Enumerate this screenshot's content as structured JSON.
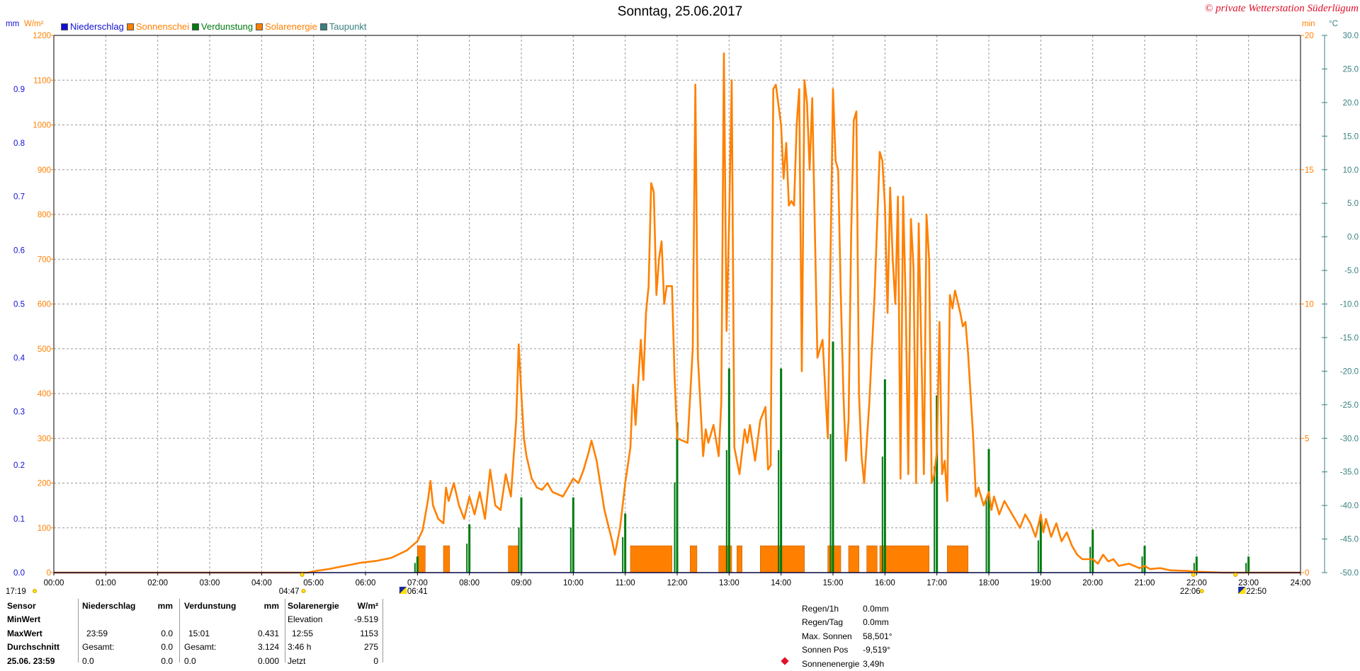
{
  "header": {
    "title": "Sonntag, 25.06.2017",
    "copyright": "© private Wetterstation Süderlügum"
  },
  "legend": [
    {
      "label": "Niederschlag",
      "color": "#1010d0"
    },
    {
      "label": "Sonnenschei",
      "color": "#ff8000"
    },
    {
      "label": "Verdunstung",
      "color": "#007a10"
    },
    {
      "label": "Solarenergie",
      "color": "#ff8000"
    },
    {
      "label": "Taupunkt",
      "color": "#3a8080"
    }
  ],
  "units": {
    "left_mm": "mm",
    "left_wm2": "W/m²",
    "right_min": "min",
    "right_c": "°C"
  },
  "chart_data": {
    "type": "line",
    "title": "Sonntag, 25.06.2017",
    "x_ticks": [
      "00:00",
      "01:00",
      "02:00",
      "03:00",
      "04:00",
      "05:00",
      "06:00",
      "07:00",
      "08:00",
      "09:00",
      "10:00",
      "11:00",
      "12:00",
      "13:00",
      "14:00",
      "15:00",
      "16:00",
      "17:00",
      "18:00",
      "19:00",
      "20:00",
      "21:00",
      "22:00",
      "23:00",
      "24:00"
    ],
    "xlim": [
      0,
      24
    ],
    "axes": {
      "mm": {
        "ticks": [
          "0.0",
          "0.1",
          "0.2",
          "0.3",
          "0.4",
          "0.5",
          "0.6",
          "0.7",
          "0.8",
          "0.9"
        ],
        "color": "#1010d0",
        "ylim": [
          0,
          1.0
        ]
      },
      "wm2": {
        "ticks": [
          "0",
          "100",
          "200",
          "300",
          "400",
          "500",
          "600",
          "700",
          "800",
          "900",
          "1000",
          "1100",
          "1200"
        ],
        "color": "#ff8000",
        "ylim": [
          0,
          1200
        ]
      },
      "min": {
        "ticks": [
          "0",
          "5",
          "10",
          "15",
          "20"
        ],
        "color": "#ff8000",
        "ylim": [
          0,
          20
        ]
      },
      "celsius": {
        "ticks": [
          "-50.0",
          "-45.0",
          "-40.0",
          "-35.0",
          "-30.0",
          "-25.0",
          "-20.0",
          "-15.0",
          "-10.0",
          "-5.0",
          "0.0",
          "5.0",
          "10.0",
          "15.0",
          "20.0",
          "25.0",
          "30.0"
        ],
        "color": "#3a8080",
        "ylim": [
          -50,
          30
        ]
      }
    },
    "grid": true,
    "series": [
      {
        "name": "Solarenergie",
        "unit": "W/m²",
        "color": "#ff8000",
        "kind": "line",
        "points": [
          [
            0,
            0
          ],
          [
            4.9,
            0
          ],
          [
            5.0,
            3
          ],
          [
            5.3,
            8
          ],
          [
            5.6,
            15
          ],
          [
            5.9,
            22
          ],
          [
            6.2,
            26
          ],
          [
            6.5,
            33
          ],
          [
            6.8,
            50
          ],
          [
            7.0,
            70
          ],
          [
            7.1,
            95
          ],
          [
            7.2,
            160
          ],
          [
            7.25,
            205
          ],
          [
            7.3,
            150
          ],
          [
            7.4,
            120
          ],
          [
            7.5,
            110
          ],
          [
            7.55,
            190
          ],
          [
            7.6,
            160
          ],
          [
            7.7,
            200
          ],
          [
            7.8,
            150
          ],
          [
            7.9,
            120
          ],
          [
            8.0,
            170
          ],
          [
            8.1,
            130
          ],
          [
            8.2,
            180
          ],
          [
            8.3,
            120
          ],
          [
            8.4,
            230
          ],
          [
            8.5,
            150
          ],
          [
            8.6,
            140
          ],
          [
            8.7,
            220
          ],
          [
            8.8,
            170
          ],
          [
            8.9,
            340
          ],
          [
            8.95,
            510
          ],
          [
            9.0,
            400
          ],
          [
            9.05,
            300
          ],
          [
            9.1,
            260
          ],
          [
            9.2,
            210
          ],
          [
            9.3,
            190
          ],
          [
            9.4,
            185
          ],
          [
            9.5,
            200
          ],
          [
            9.6,
            180
          ],
          [
            9.8,
            170
          ],
          [
            9.9,
            190
          ],
          [
            10.0,
            210
          ],
          [
            10.1,
            200
          ],
          [
            10.2,
            230
          ],
          [
            10.3,
            270
          ],
          [
            10.35,
            295
          ],
          [
            10.45,
            250
          ],
          [
            10.6,
            140
          ],
          [
            10.75,
            70
          ],
          [
            10.8,
            40
          ],
          [
            10.9,
            100
          ],
          [
            11.0,
            200
          ],
          [
            11.1,
            280
          ],
          [
            11.15,
            420
          ],
          [
            11.2,
            330
          ],
          [
            11.3,
            520
          ],
          [
            11.35,
            430
          ],
          [
            11.4,
            580
          ],
          [
            11.45,
            640
          ],
          [
            11.5,
            870
          ],
          [
            11.55,
            850
          ],
          [
            11.6,
            620
          ],
          [
            11.65,
            700
          ],
          [
            11.7,
            740
          ],
          [
            11.75,
            600
          ],
          [
            11.8,
            640
          ],
          [
            11.9,
            640
          ],
          [
            11.95,
            440
          ],
          [
            12.0,
            300
          ],
          [
            12.2,
            290
          ],
          [
            12.3,
            500
          ],
          [
            12.35,
            1090
          ],
          [
            12.4,
            480
          ],
          [
            12.5,
            260
          ],
          [
            12.55,
            320
          ],
          [
            12.6,
            290
          ],
          [
            12.7,
            330
          ],
          [
            12.8,
            260
          ],
          [
            12.85,
            380
          ],
          [
            12.9,
            1160
          ],
          [
            12.95,
            540
          ],
          [
            13.0,
            780
          ],
          [
            13.05,
            1100
          ],
          [
            13.1,
            280
          ],
          [
            13.2,
            220
          ],
          [
            13.3,
            320
          ],
          [
            13.35,
            290
          ],
          [
            13.4,
            330
          ],
          [
            13.5,
            250
          ],
          [
            13.6,
            340
          ],
          [
            13.7,
            370
          ],
          [
            13.75,
            230
          ],
          [
            13.8,
            240
          ],
          [
            13.85,
            1080
          ],
          [
            13.9,
            1090
          ],
          [
            14.0,
            1000
          ],
          [
            14.05,
            880
          ],
          [
            14.1,
            960
          ],
          [
            14.15,
            820
          ],
          [
            14.2,
            830
          ],
          [
            14.25,
            820
          ],
          [
            14.3,
            1000
          ],
          [
            14.35,
            1080
          ],
          [
            14.4,
            450
          ],
          [
            14.45,
            1100
          ],
          [
            14.5,
            1050
          ],
          [
            14.55,
            900
          ],
          [
            14.6,
            1060
          ],
          [
            14.7,
            480
          ],
          [
            14.8,
            520
          ],
          [
            14.9,
            300
          ],
          [
            15.0,
            1080
          ],
          [
            15.05,
            920
          ],
          [
            15.1,
            900
          ],
          [
            15.15,
            620
          ],
          [
            15.2,
            400
          ],
          [
            15.25,
            250
          ],
          [
            15.3,
            340
          ],
          [
            15.35,
            760
          ],
          [
            15.4,
            1010
          ],
          [
            15.45,
            1030
          ],
          [
            15.5,
            400
          ],
          [
            15.55,
            260
          ],
          [
            15.6,
            200
          ],
          [
            15.7,
            380
          ],
          [
            15.8,
            620
          ],
          [
            15.9,
            940
          ],
          [
            15.95,
            920
          ],
          [
            16.0,
            820
          ],
          [
            16.05,
            580
          ],
          [
            16.1,
            860
          ],
          [
            16.15,
            700
          ],
          [
            16.2,
            600
          ],
          [
            16.25,
            840
          ],
          [
            16.3,
            210
          ],
          [
            16.35,
            840
          ],
          [
            16.4,
            600
          ],
          [
            16.45,
            220
          ],
          [
            16.5,
            790
          ],
          [
            16.55,
            680
          ],
          [
            16.6,
            200
          ],
          [
            16.65,
            780
          ],
          [
            16.7,
            500
          ],
          [
            16.75,
            220
          ],
          [
            16.8,
            800
          ],
          [
            16.85,
            700
          ],
          [
            16.9,
            200
          ],
          [
            16.95,
            220
          ],
          [
            17.0,
            270
          ],
          [
            17.05,
            560
          ],
          [
            17.1,
            220
          ],
          [
            17.15,
            250
          ],
          [
            17.2,
            160
          ],
          [
            17.25,
            620
          ],
          [
            17.3,
            590
          ],
          [
            17.35,
            630
          ],
          [
            17.45,
            580
          ],
          [
            17.5,
            550
          ],
          [
            17.55,
            560
          ],
          [
            17.6,
            490
          ],
          [
            17.7,
            300
          ],
          [
            17.75,
            170
          ],
          [
            17.8,
            190
          ],
          [
            17.9,
            150
          ],
          [
            18.0,
            180
          ],
          [
            18.05,
            140
          ],
          [
            18.1,
            170
          ],
          [
            18.2,
            130
          ],
          [
            18.3,
            160
          ],
          [
            18.4,
            140
          ],
          [
            18.5,
            120
          ],
          [
            18.6,
            100
          ],
          [
            18.7,
            130
          ],
          [
            18.8,
            110
          ],
          [
            18.9,
            80
          ],
          [
            19.0,
            130
          ],
          [
            19.05,
            90
          ],
          [
            19.1,
            120
          ],
          [
            19.2,
            80
          ],
          [
            19.3,
            110
          ],
          [
            19.4,
            70
          ],
          [
            19.5,
            90
          ],
          [
            19.6,
            60
          ],
          [
            19.7,
            40
          ],
          [
            19.8,
            30
          ],
          [
            19.9,
            30
          ],
          [
            20.0,
            30
          ],
          [
            20.1,
            20
          ],
          [
            20.2,
            40
          ],
          [
            20.3,
            25
          ],
          [
            20.4,
            30
          ],
          [
            20.5,
            15
          ],
          [
            20.7,
            20
          ],
          [
            20.9,
            10
          ],
          [
            21.0,
            15
          ],
          [
            21.1,
            8
          ],
          [
            21.3,
            10
          ],
          [
            21.5,
            5
          ],
          [
            21.8,
            4
          ],
          [
            22.0,
            2
          ],
          [
            22.5,
            0
          ],
          [
            24,
            0
          ]
        ]
      },
      {
        "name": "Sonnenschein",
        "unit": "min",
        "color": "#ff8000",
        "kind": "bars",
        "bars": [
          [
            7.0,
            7.15,
            1
          ],
          [
            7.5,
            7.62,
            1
          ],
          [
            8.75,
            8.95,
            1
          ],
          [
            11.1,
            11.9,
            1
          ],
          [
            12.25,
            12.38,
            1
          ],
          [
            12.8,
            13.05,
            1
          ],
          [
            13.15,
            13.25,
            1
          ],
          [
            13.6,
            14.45,
            1
          ],
          [
            14.9,
            15.15,
            1
          ],
          [
            15.3,
            15.5,
            1
          ],
          [
            15.65,
            15.85,
            1
          ],
          [
            15.9,
            16.85,
            1
          ],
          [
            17.2,
            17.6,
            1
          ]
        ]
      },
      {
        "name": "Verdunstung",
        "unit": "mm",
        "color": "#007a10",
        "kind": "spikes",
        "spikes": [
          [
            7.0,
            0.03
          ],
          [
            8.0,
            0.09
          ],
          [
            9.0,
            0.14
          ],
          [
            10.0,
            0.14
          ],
          [
            11.0,
            0.11
          ],
          [
            12.0,
            0.28
          ],
          [
            13.0,
            0.38
          ],
          [
            14.0,
            0.38
          ],
          [
            15.0,
            0.43
          ],
          [
            16.0,
            0.36
          ],
          [
            17.0,
            0.33
          ],
          [
            18.0,
            0.23
          ],
          [
            19.0,
            0.1
          ],
          [
            20.0,
            0.08
          ],
          [
            21.0,
            0.05
          ],
          [
            22.0,
            0.03
          ],
          [
            23.0,
            0.03
          ]
        ]
      },
      {
        "name": "Niederschlag",
        "unit": "mm",
        "color": "#1010d0",
        "kind": "line",
        "points": [
          [
            0,
            0
          ],
          [
            24,
            0
          ]
        ]
      }
    ],
    "markers": {
      "left_time": "17:19",
      "sunrise_label": "04:47",
      "sunrise_hour": 4.78,
      "twilight_label": "06:41",
      "twilight_hour": 6.68,
      "sunset_label": "22:06",
      "sunset_hour": 22.1,
      "dusk_label": "22:50",
      "dusk_hour": 22.83
    }
  },
  "stats": {
    "col1": [
      "Sensor",
      "MinWert",
      "MaxWert",
      "Durchschnitt",
      "25.06. 23:59"
    ],
    "niederschlag": {
      "header": "Niederschlag",
      "unit": "mm",
      "rows": [
        [
          "",
          ""
        ],
        [
          "23:59",
          "0.0"
        ],
        [
          "Gesamt:",
          "0.0"
        ],
        [
          "0.0",
          "0.0"
        ]
      ]
    },
    "verdunstung": {
      "header": "Verdunstung",
      "unit": "mm",
      "rows": [
        [
          "",
          ""
        ],
        [
          "15:01",
          "0.431"
        ],
        [
          "Gesamt:",
          "3.124"
        ],
        [
          "0.0",
          "0.000"
        ]
      ]
    },
    "solarenergie": {
      "header": "Solarenergie",
      "unit": "W/m²",
      "rows": [
        [
          "Elevation",
          "-9.519"
        ],
        [
          "12:55",
          "1153"
        ],
        [
          "3:46 h",
          "275"
        ],
        [
          "Jetzt",
          "0"
        ]
      ]
    },
    "right": [
      [
        "Regen/1h",
        "0.0mm"
      ],
      [
        "Regen/Tag",
        "0.0mm"
      ],
      [
        "Max. Sonnen",
        "58,501°"
      ],
      [
        "Sonnen Pos",
        "-9,519°"
      ],
      [
        "Sonnenenergie",
        "3,49h"
      ]
    ]
  }
}
